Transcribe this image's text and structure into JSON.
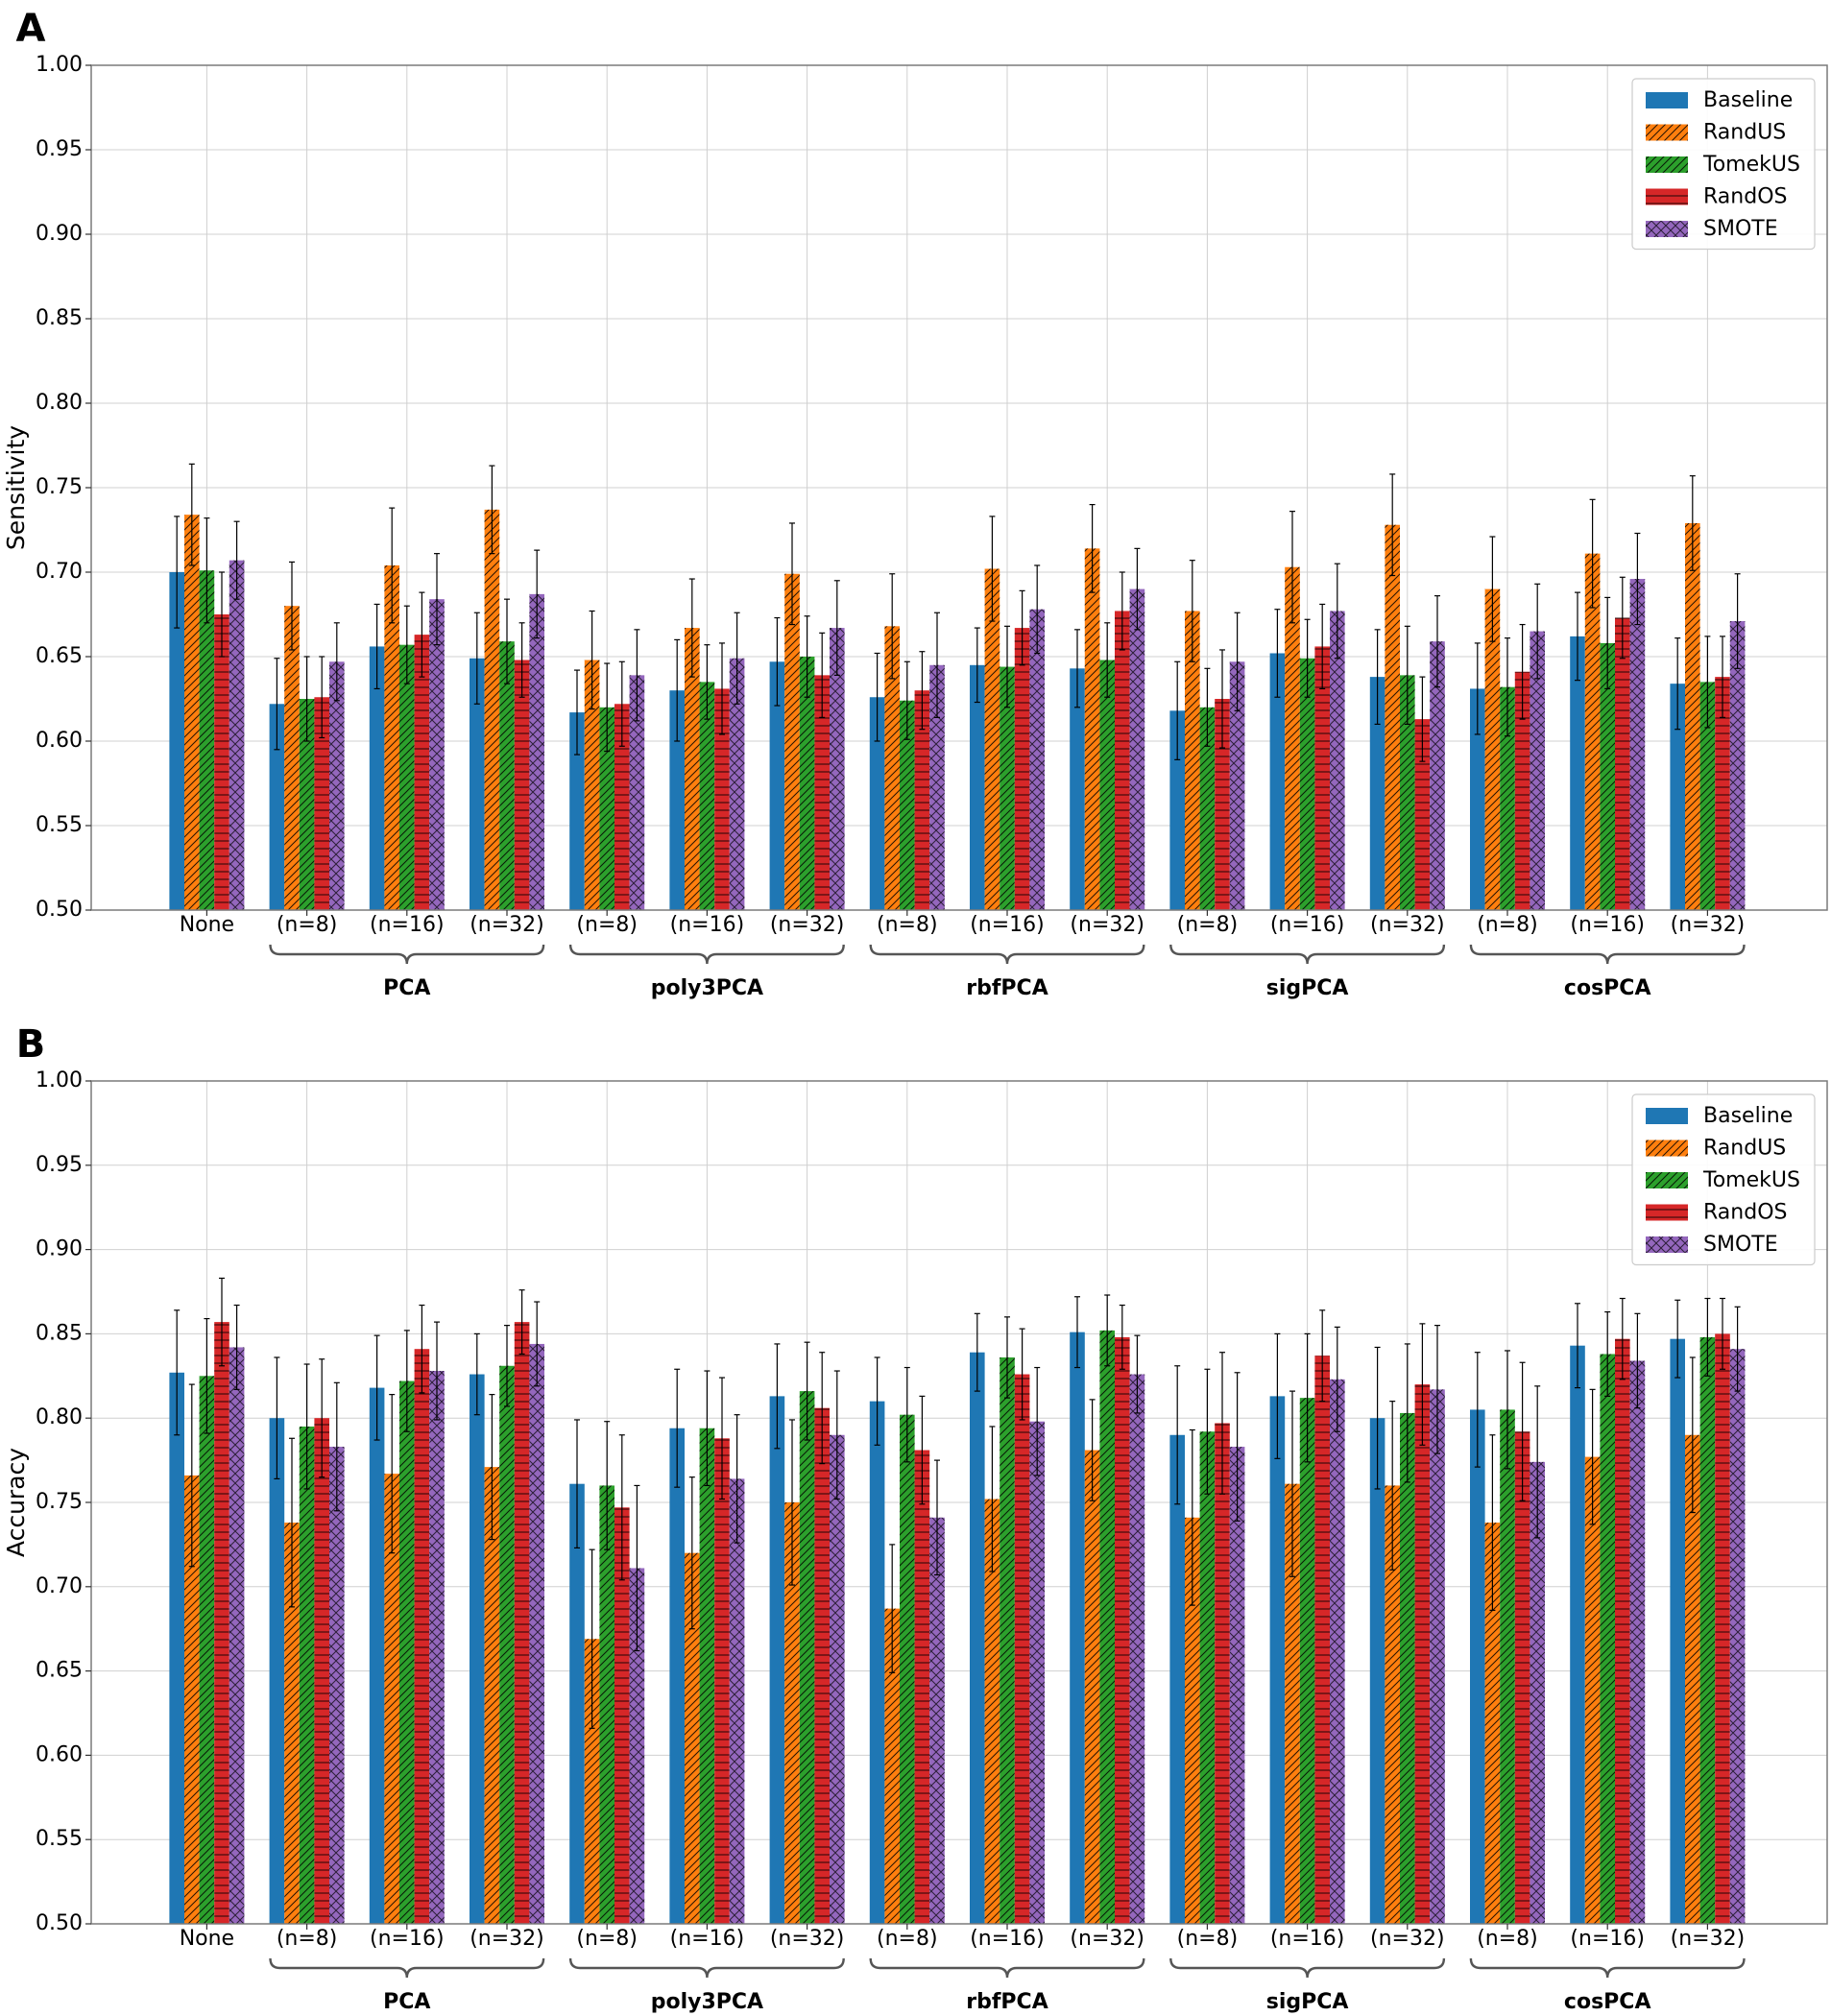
{
  "chart_data": [
    {
      "panel": "A",
      "type": "bar",
      "ylabel": "Sensitivity",
      "ylim": [
        0.5,
        1.0
      ],
      "yticks": [
        "0.50",
        "0.55",
        "0.60",
        "0.65",
        "0.70",
        "0.75",
        "0.80",
        "0.85",
        "0.90",
        "0.95",
        "1.00"
      ],
      "grid": true,
      "legend_position": "top-right",
      "categories": [
        "None",
        "(n=8)",
        "(n=16)",
        "(n=32)",
        "(n=8)",
        "(n=16)",
        "(n=32)",
        "(n=8)",
        "(n=16)",
        "(n=32)",
        "(n=8)",
        "(n=16)",
        "(n=32)",
        "(n=8)",
        "(n=16)",
        "(n=32)"
      ],
      "groups": [
        {
          "label": "PCA",
          "start": 1,
          "end": 3
        },
        {
          "label": "poly3PCA",
          "start": 4,
          "end": 6
        },
        {
          "label": "rbfPCA",
          "start": 7,
          "end": 9
        },
        {
          "label": "sigPCA",
          "start": 10,
          "end": 12
        },
        {
          "label": "cosPCA",
          "start": 13,
          "end": 15
        }
      ],
      "series": [
        {
          "name": "Baseline",
          "color": "#1f77b4",
          "pattern": "none",
          "values": [
            0.7,
            0.622,
            0.656,
            0.649,
            0.617,
            0.63,
            0.647,
            0.626,
            0.645,
            0.643,
            0.618,
            0.652,
            0.638,
            0.631,
            0.662,
            0.634
          ],
          "errors": [
            0.033,
            0.027,
            0.025,
            0.027,
            0.025,
            0.03,
            0.026,
            0.026,
            0.022,
            0.023,
            0.029,
            0.026,
            0.028,
            0.027,
            0.026,
            0.027
          ]
        },
        {
          "name": "RandUS",
          "color": "#ff7f0e",
          "pattern": "diag",
          "values": [
            0.734,
            0.68,
            0.704,
            0.737,
            0.648,
            0.667,
            0.699,
            0.668,
            0.702,
            0.714,
            0.677,
            0.703,
            0.728,
            0.69,
            0.711,
            0.729
          ],
          "errors": [
            0.03,
            0.026,
            0.034,
            0.026,
            0.029,
            0.029,
            0.03,
            0.031,
            0.031,
            0.026,
            0.03,
            0.033,
            0.03,
            0.031,
            0.032,
            0.028
          ]
        },
        {
          "name": "TomekUS",
          "color": "#2ca02c",
          "pattern": "diag",
          "values": [
            0.701,
            0.625,
            0.657,
            0.659,
            0.62,
            0.635,
            0.65,
            0.624,
            0.644,
            0.648,
            0.62,
            0.649,
            0.639,
            0.632,
            0.658,
            0.635
          ],
          "errors": [
            0.031,
            0.025,
            0.023,
            0.025,
            0.026,
            0.022,
            0.024,
            0.023,
            0.024,
            0.022,
            0.023,
            0.023,
            0.029,
            0.029,
            0.027,
            0.027
          ]
        },
        {
          "name": "RandOS",
          "color": "#d62728",
          "pattern": "horiz",
          "values": [
            0.675,
            0.626,
            0.663,
            0.648,
            0.622,
            0.631,
            0.639,
            0.63,
            0.667,
            0.677,
            0.625,
            0.656,
            0.613,
            0.641,
            0.673,
            0.638
          ],
          "errors": [
            0.025,
            0.024,
            0.025,
            0.022,
            0.025,
            0.027,
            0.025,
            0.023,
            0.022,
            0.023,
            0.029,
            0.025,
            0.025,
            0.028,
            0.024,
            0.024
          ]
        },
        {
          "name": "SMOTE",
          "color": "#9467bd",
          "pattern": "cross",
          "values": [
            0.707,
            0.647,
            0.684,
            0.687,
            0.639,
            0.649,
            0.667,
            0.645,
            0.678,
            0.69,
            0.647,
            0.677,
            0.659,
            0.665,
            0.696,
            0.671
          ],
          "errors": [
            0.023,
            0.023,
            0.027,
            0.026,
            0.027,
            0.027,
            0.028,
            0.031,
            0.026,
            0.024,
            0.029,
            0.028,
            0.027,
            0.028,
            0.027,
            0.028
          ]
        }
      ]
    },
    {
      "panel": "B",
      "type": "bar",
      "ylabel": "Accuracy",
      "ylim": [
        0.5,
        1.0
      ],
      "yticks": [
        "0.50",
        "0.55",
        "0.60",
        "0.65",
        "0.70",
        "0.75",
        "0.80",
        "0.85",
        "0.90",
        "0.95",
        "1.00"
      ],
      "grid": true,
      "legend_position": "top-right",
      "categories": [
        "None",
        "(n=8)",
        "(n=16)",
        "(n=32)",
        "(n=8)",
        "(n=16)",
        "(n=32)",
        "(n=8)",
        "(n=16)",
        "(n=32)",
        "(n=8)",
        "(n=16)",
        "(n=32)",
        "(n=8)",
        "(n=16)",
        "(n=32)"
      ],
      "groups": [
        {
          "label": "PCA",
          "start": 1,
          "end": 3
        },
        {
          "label": "poly3PCA",
          "start": 4,
          "end": 6
        },
        {
          "label": "rbfPCA",
          "start": 7,
          "end": 9
        },
        {
          "label": "sigPCA",
          "start": 10,
          "end": 12
        },
        {
          "label": "cosPCA",
          "start": 13,
          "end": 15
        }
      ],
      "series": [
        {
          "name": "Baseline",
          "color": "#1f77b4",
          "pattern": "none",
          "values": [
            0.827,
            0.8,
            0.818,
            0.826,
            0.761,
            0.794,
            0.813,
            0.81,
            0.839,
            0.851,
            0.79,
            0.813,
            0.8,
            0.805,
            0.843,
            0.847
          ],
          "errors": [
            0.037,
            0.036,
            0.031,
            0.024,
            0.038,
            0.035,
            0.031,
            0.026,
            0.023,
            0.021,
            0.041,
            0.037,
            0.042,
            0.034,
            0.025,
            0.023
          ]
        },
        {
          "name": "RandUS",
          "color": "#ff7f0e",
          "pattern": "diag",
          "values": [
            0.766,
            0.738,
            0.767,
            0.771,
            0.669,
            0.72,
            0.75,
            0.687,
            0.752,
            0.781,
            0.741,
            0.761,
            0.76,
            0.738,
            0.777,
            0.79
          ],
          "errors": [
            0.054,
            0.05,
            0.047,
            0.043,
            0.053,
            0.045,
            0.049,
            0.038,
            0.043,
            0.03,
            0.052,
            0.055,
            0.05,
            0.052,
            0.04,
            0.046
          ]
        },
        {
          "name": "TomekUS",
          "color": "#2ca02c",
          "pattern": "diag",
          "values": [
            0.825,
            0.795,
            0.822,
            0.831,
            0.76,
            0.794,
            0.816,
            0.802,
            0.836,
            0.852,
            0.792,
            0.812,
            0.803,
            0.805,
            0.838,
            0.848
          ],
          "errors": [
            0.034,
            0.037,
            0.03,
            0.024,
            0.038,
            0.034,
            0.029,
            0.028,
            0.024,
            0.021,
            0.037,
            0.038,
            0.041,
            0.035,
            0.025,
            0.023
          ]
        },
        {
          "name": "RandOS",
          "color": "#d62728",
          "pattern": "horiz",
          "values": [
            0.857,
            0.8,
            0.841,
            0.857,
            0.747,
            0.788,
            0.806,
            0.781,
            0.826,
            0.848,
            0.797,
            0.837,
            0.82,
            0.792,
            0.847,
            0.85
          ],
          "errors": [
            0.026,
            0.035,
            0.026,
            0.019,
            0.043,
            0.036,
            0.033,
            0.032,
            0.027,
            0.019,
            0.042,
            0.027,
            0.036,
            0.041,
            0.024,
            0.021
          ]
        },
        {
          "name": "SMOTE",
          "color": "#9467bd",
          "pattern": "cross",
          "values": [
            0.842,
            0.783,
            0.828,
            0.844,
            0.711,
            0.764,
            0.79,
            0.741,
            0.798,
            0.826,
            0.783,
            0.823,
            0.817,
            0.774,
            0.834,
            0.841
          ],
          "errors": [
            0.025,
            0.038,
            0.029,
            0.025,
            0.049,
            0.038,
            0.038,
            0.034,
            0.032,
            0.023,
            0.044,
            0.031,
            0.038,
            0.045,
            0.028,
            0.025
          ]
        }
      ]
    }
  ]
}
